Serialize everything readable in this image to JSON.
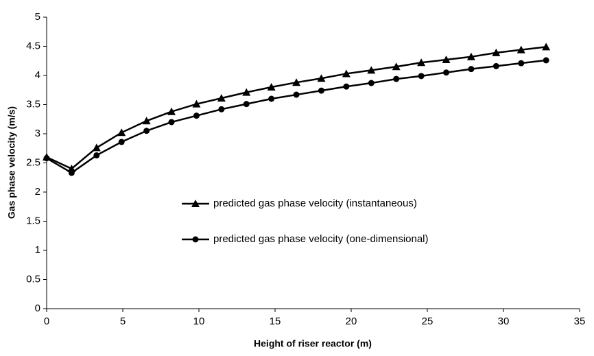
{
  "chart_data": {
    "type": "line",
    "x_label": "Height of riser reactor (m)",
    "y_label": "Gas phase velocity (m/s)",
    "x": [
      0,
      1.64,
      3.28,
      4.92,
      6.56,
      8.2,
      9.84,
      11.48,
      13.12,
      14.76,
      16.4,
      18.04,
      19.68,
      21.32,
      22.96,
      24.6,
      26.24,
      27.88,
      29.52,
      31.16,
      32.8
    ],
    "series": [
      {
        "name": "predicted gas phase velocity (instantaneous)",
        "color": "#000000",
        "marker": "triangle",
        "values": [
          2.6,
          2.4,
          2.76,
          3.02,
          3.22,
          3.38,
          3.51,
          3.61,
          3.71,
          3.8,
          3.88,
          3.95,
          4.03,
          4.09,
          4.15,
          4.22,
          4.27,
          4.32,
          4.39,
          4.44,
          4.49
        ]
      },
      {
        "name": "predicted gas phase velocity (one-dimensional)",
        "color": "#000000",
        "marker": "circle",
        "values": [
          2.58,
          2.33,
          2.63,
          2.86,
          3.05,
          3.2,
          3.31,
          3.42,
          3.51,
          3.6,
          3.67,
          3.74,
          3.81,
          3.87,
          3.94,
          3.99,
          4.05,
          4.11,
          4.16,
          4.21,
          4.26
        ]
      }
    ],
    "xlim": [
      0,
      35
    ],
    "xticks": [
      0,
      5,
      10,
      15,
      20,
      25,
      30,
      35
    ],
    "ylim": [
      0,
      5
    ],
    "yticks": [
      0,
      0.5,
      1,
      1.5,
      2,
      2.5,
      3,
      3.5,
      4,
      4.5,
      5
    ],
    "grid": false
  }
}
